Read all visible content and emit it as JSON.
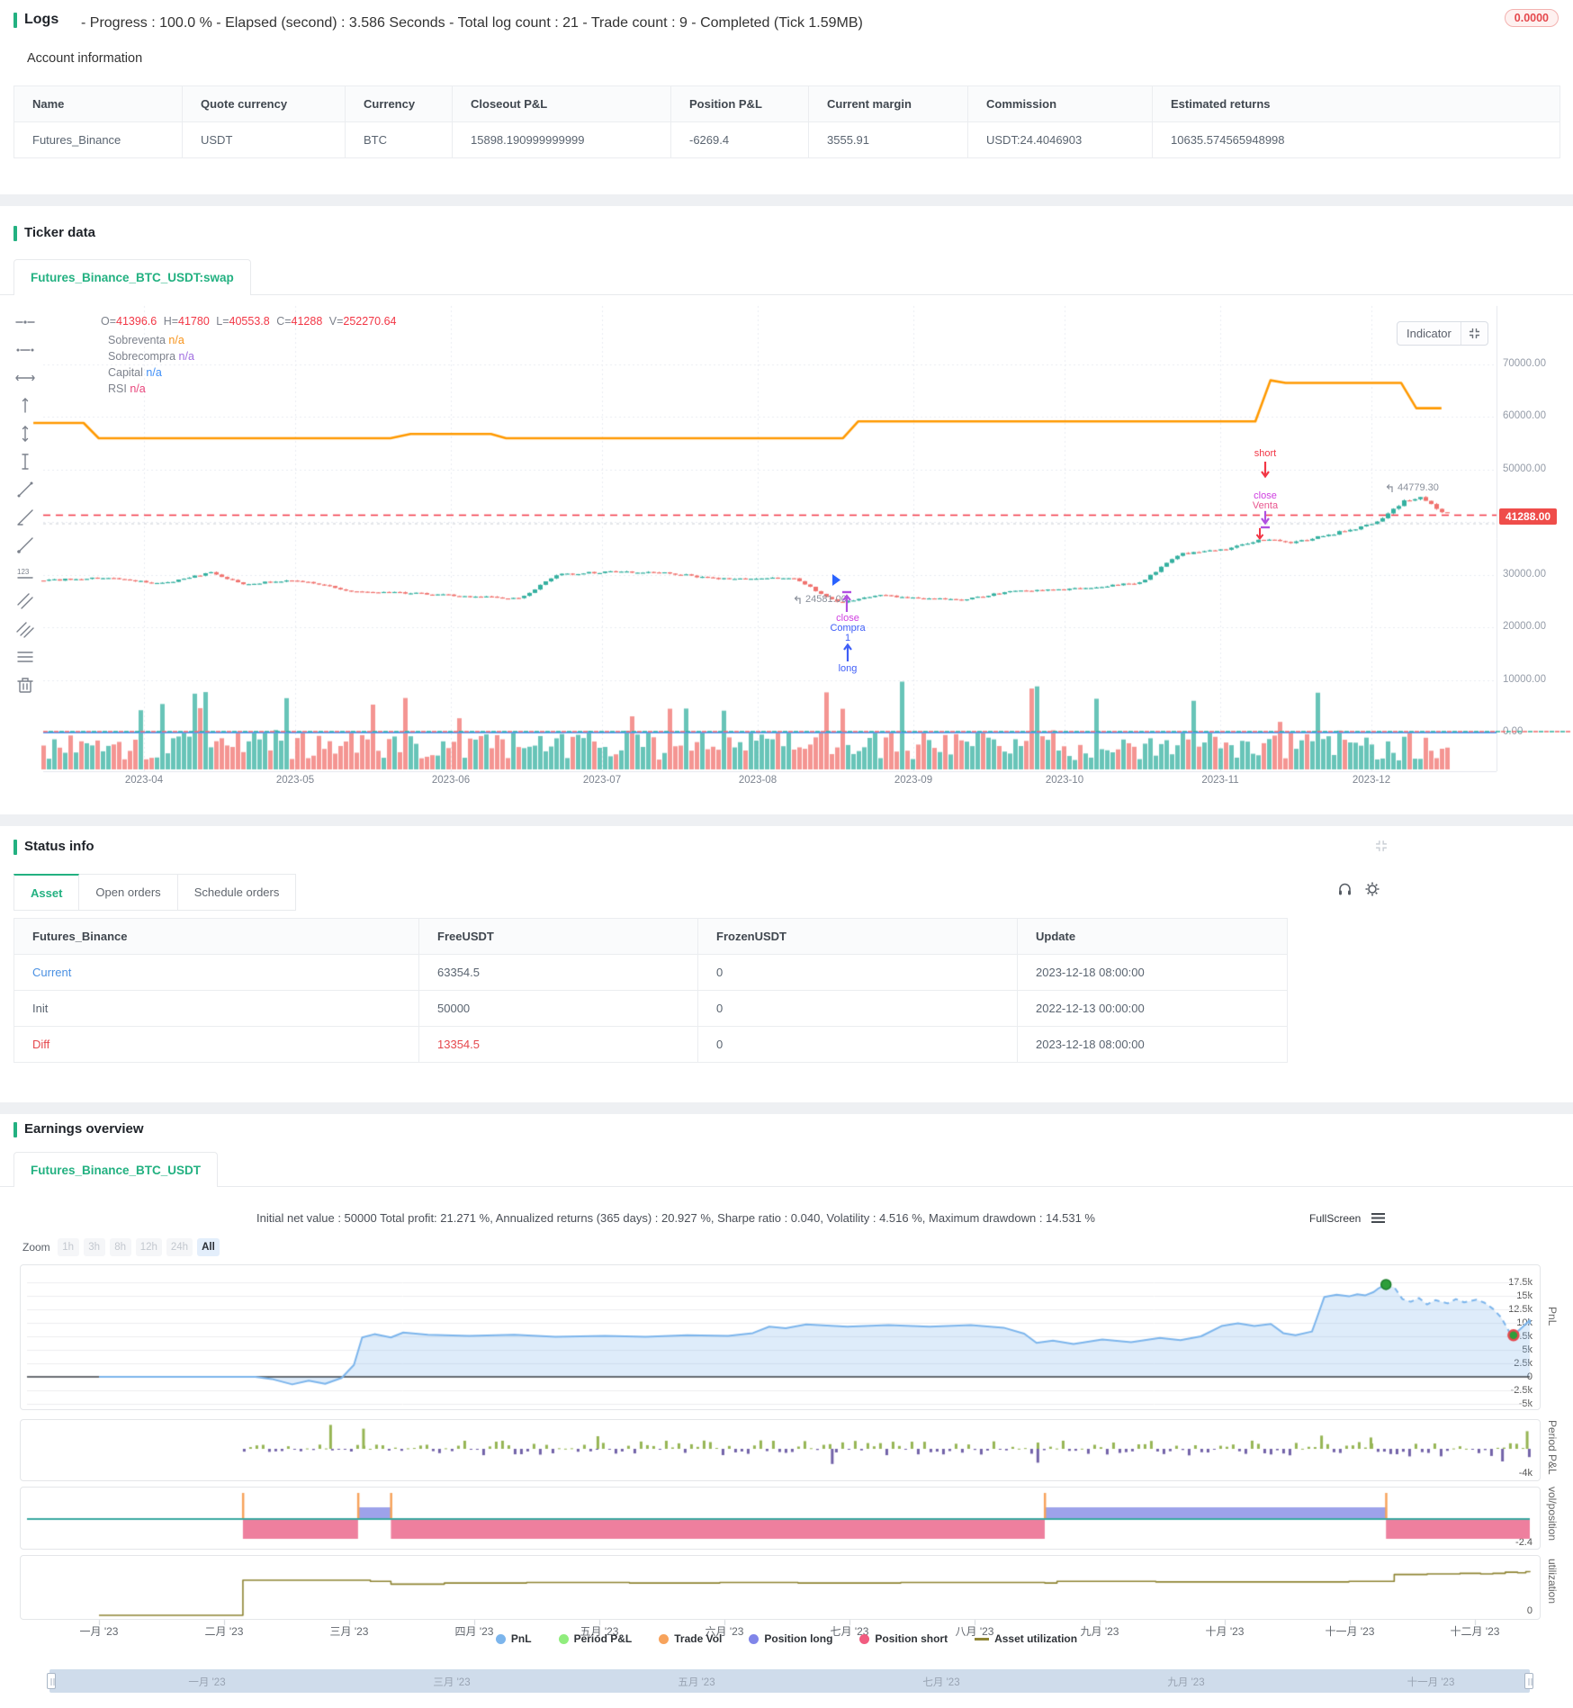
{
  "page": {
    "accent_green": "#23b181",
    "bg": "#ffffff"
  },
  "logs": {
    "title": "Logs",
    "summary": "- Progress : 100.0 % - Elapsed (second) : 3.586  Seconds - Total log count : 21 - Trade count : 9 - Completed (Tick 1.59MB)",
    "badge": "0.0000",
    "badge_color": "#e5484d"
  },
  "account": {
    "title": "Account information",
    "headers": [
      "Name",
      "Quote currency",
      "Currency",
      "Closeout P&L",
      "Position P&L",
      "Current margin",
      "Commission",
      "Estimated returns"
    ],
    "rows": [
      [
        "Futures_Binance",
        "USDT",
        "BTC",
        "15898.190999999999",
        "-6269.4",
        "3555.91",
        "USDT:24.4046903",
        "10635.574565948998"
      ]
    ]
  },
  "ticker": {
    "title": "Ticker data",
    "tab": "Futures_Binance_BTC_USDT:swap",
    "legend_ohlc": [
      {
        "k": "O=",
        "v": "41396.6"
      },
      {
        "k": "H=",
        "v": "41780"
      },
      {
        "k": "L=",
        "v": "40553.8"
      },
      {
        "k": "C=",
        "v": "41288"
      },
      {
        "k": "V=",
        "v": "252270.64"
      }
    ],
    "indicators": [
      {
        "label": "Sobreventa",
        "value": "n/a",
        "color": "#f7931a"
      },
      {
        "label": "Sobrecompra",
        "value": "n/a",
        "color": "#a06ee0"
      },
      {
        "label": "Capital",
        "value": "n/a",
        "color": "#3e8ef7"
      },
      {
        "label": "RSI",
        "value": "n/a",
        "color": "#e8467c"
      }
    ],
    "indicator_button": "Indicator",
    "price_ticks": [
      "70000.00",
      "60000.00",
      "50000.00",
      "40000.00",
      "30000.00",
      "20000.00",
      "10000.00",
      "0.00"
    ],
    "last_price_badge": "41288.00",
    "months": [
      "2023-04",
      "2023-05",
      "2023-06",
      "2023-07",
      "2023-08",
      "2023-09",
      "2023-10",
      "2023-11",
      "2023-12"
    ],
    "annotations": {
      "low_label": "24581.00",
      "high_label": "44779.30",
      "buy_close": "close",
      "buy_side": "Compra",
      "buy_qty": "1",
      "buy_dir": "long",
      "sell_dir": "short",
      "sell_close": "close",
      "sell_side": "Venta"
    },
    "colors": {
      "up": "#35b0a0",
      "down": "#f0726e",
      "capital": "#ff9900",
      "close_line": "#f23645",
      "zero_blue": "#5b9cf8",
      "zero_green": "#2fae9e",
      "zero_red": "#ef6a6a"
    },
    "chart_data": {
      "type": "candlestick",
      "symbol": "Futures_Binance_BTC_USDT:swap",
      "close_price": 41288,
      "y_range": [
        0,
        75000
      ],
      "price_path": [
        [
          "2023-03-10",
          28800
        ],
        [
          "2023-03-25",
          29400
        ],
        [
          "2023-04-05",
          28300
        ],
        [
          "2023-04-14",
          30400
        ],
        [
          "2023-04-21",
          28200
        ],
        [
          "2023-05-01",
          29000
        ],
        [
          "2023-05-12",
          26900
        ],
        [
          "2023-05-25",
          26400
        ],
        [
          "2023-06-05",
          25800
        ],
        [
          "2023-06-15",
          25500
        ],
        [
          "2023-06-22",
          30000
        ],
        [
          "2023-07-01",
          30500
        ],
        [
          "2023-07-14",
          30300
        ],
        [
          "2023-07-24",
          29200
        ],
        [
          "2023-08-08",
          29400
        ],
        [
          "2023-08-17",
          24581
        ],
        [
          "2023-08-25",
          26000
        ],
        [
          "2023-09-11",
          25200
        ],
        [
          "2023-09-20",
          26800
        ],
        [
          "2023-10-01",
          27100
        ],
        [
          "2023-10-16",
          28500
        ],
        [
          "2023-10-24",
          33900
        ],
        [
          "2023-11-02",
          34800
        ],
        [
          "2023-11-09",
          36700
        ],
        [
          "2023-11-16",
          36100
        ],
        [
          "2023-11-24",
          37900
        ],
        [
          "2023-12-01",
          39500
        ],
        [
          "2023-12-05",
          42000
        ],
        [
          "2023-12-08",
          44200
        ],
        [
          "2023-12-11",
          44779.3
        ],
        [
          "2023-12-14",
          42500
        ],
        [
          "2023-12-17",
          41288
        ]
      ],
      "capital_line": [
        [
          "2023-03-10",
          58800
        ],
        [
          "2023-03-20",
          58800
        ],
        [
          "2023-03-23",
          55900
        ],
        [
          "2023-05-20",
          55900
        ],
        [
          "2023-05-24",
          56700
        ],
        [
          "2023-06-09",
          56700
        ],
        [
          "2023-06-12",
          55900
        ],
        [
          "2023-08-18",
          55900
        ],
        [
          "2023-08-21",
          59100
        ],
        [
          "2023-11-08",
          59100
        ],
        [
          "2023-11-11",
          66900
        ],
        [
          "2023-11-14",
          66400
        ],
        [
          "2023-12-07",
          66400
        ],
        [
          "2023-12-10",
          61600
        ],
        [
          "2023-12-15",
          61600
        ]
      ],
      "trade_markers": [
        {
          "date": "2023-08-19",
          "labels": [
            "close",
            "Compra",
            "1",
            "long"
          ],
          "type": "close-short-open-long"
        },
        {
          "date": "2023-11-10",
          "labels": [
            "short",
            "close",
            "Venta"
          ],
          "type": "close-long-open-short"
        }
      ]
    }
  },
  "status": {
    "title": "Status info",
    "tabs": [
      "Asset",
      "Open orders",
      "Schedule orders"
    ],
    "active_tab": "Asset",
    "headers": [
      "Futures_Binance",
      "FreeUSDT",
      "FrozenUSDT",
      "Update"
    ],
    "rows": [
      {
        "name": "Current",
        "free": "63354.5",
        "frozen": "0",
        "update": "2023-12-18 08:00:00",
        "name_color": "#4a90e2",
        "value_color": "#5a6470",
        "link": true
      },
      {
        "name": "Init",
        "free": "50000",
        "frozen": "0",
        "update": "2022-12-13 00:00:00",
        "name_color": "#5a6470",
        "value_color": "#5a6470",
        "link": false
      },
      {
        "name": "Diff",
        "free": "13354.5",
        "frozen": "0",
        "update": "2023-12-18 08:00:00",
        "name_color": "#e5484d",
        "value_color": "#e5484d",
        "link": false
      }
    ]
  },
  "earnings": {
    "title": "Earnings overview",
    "tab": "Futures_Binance_BTC_USDT",
    "stats": "Initial net value : 50000 Total profit: 21.271 %, Annualized returns (365 days) : 20.927 %, Sharpe ratio : 0.040, Volatility : 4.516 %, Maximum drawdown : 14.531 %",
    "fullscreen": "FullScreen",
    "zoom_label": "Zoom",
    "zoom_options": [
      "1h",
      "3h",
      "8h",
      "12h",
      "24h",
      "All"
    ],
    "zoom_active": "All",
    "months": [
      "一月 '23",
      "二月 '23",
      "三月 '23",
      "四月 '23",
      "五月 '23",
      "六月 '23",
      "七月 '23",
      "八月 '23",
      "九月 '23",
      "十月 '23",
      "十一月 '23",
      "十二月 '23"
    ],
    "navigator_months": [
      "一月 '23",
      "三月 '23",
      "五月 '23",
      "七月 '23",
      "九月 '23",
      "十一月 '23"
    ],
    "legend": [
      {
        "label": "PnL",
        "color": "#7cb5ec",
        "marker": "circle"
      },
      {
        "label": "Period P&L",
        "color": "#90ed7d",
        "marker": "circle"
      },
      {
        "label": "Trade Vol",
        "color": "#f7a35c",
        "marker": "circle"
      },
      {
        "label": "Position long",
        "color": "#8085e9",
        "marker": "circle"
      },
      {
        "label": "Position short",
        "color": "#f15c80",
        "marker": "circle"
      },
      {
        "label": "Asset utilization",
        "color": "#8e8433",
        "marker": "line"
      }
    ],
    "axis_titles": {
      "pnl": "PnL",
      "period": "Period P&L",
      "vol": "vol/position",
      "util": "utilization"
    },
    "pnl_ticks": [
      "17.5k",
      "15k",
      "12.5k",
      "10k",
      "7.5k",
      "5k",
      "2.5k",
      "0",
      "-2.5k",
      "-5k"
    ],
    "period_min_label": "-4k",
    "vol_min_label": "-2.4",
    "util_min_label": "0",
    "chart_data": [
      {
        "name": "PnL",
        "type": "area",
        "unit": "k USDT",
        "ylim": [
          -5,
          17.5
        ],
        "solid": [
          [
            "2023-01-01",
            0
          ],
          [
            "2023-02-08",
            0
          ],
          [
            "2023-02-12",
            -0.4
          ],
          [
            "2023-02-17",
            -1.4
          ],
          [
            "2023-02-21",
            -0.7
          ],
          [
            "2023-02-25",
            -1.3
          ],
          [
            "2023-03-01",
            -0.2
          ],
          [
            "2023-03-04",
            2.2
          ],
          [
            "2023-03-06",
            7.3
          ],
          [
            "2023-03-09",
            7.9
          ],
          [
            "2023-03-13",
            7.3
          ],
          [
            "2023-03-16",
            8.2
          ],
          [
            "2023-03-22",
            7.8
          ],
          [
            "2023-04-01",
            7.6
          ],
          [
            "2023-04-12",
            7.8
          ],
          [
            "2023-04-22",
            7.4
          ],
          [
            "2023-05-04",
            7.6
          ],
          [
            "2023-05-14",
            7.4
          ],
          [
            "2023-05-24",
            7.7
          ],
          [
            "2023-06-03",
            7.6
          ],
          [
            "2023-06-09",
            8.1
          ],
          [
            "2023-06-13",
            9.3
          ],
          [
            "2023-06-17",
            9.0
          ],
          [
            "2023-06-22",
            9.7
          ],
          [
            "2023-07-02",
            9.3
          ],
          [
            "2023-07-12",
            9.6
          ],
          [
            "2023-07-22",
            9.3
          ],
          [
            "2023-08-01",
            9.6
          ],
          [
            "2023-08-09",
            9.1
          ],
          [
            "2023-08-14",
            8.0
          ],
          [
            "2023-08-17",
            6.3
          ],
          [
            "2023-08-21",
            6.7
          ],
          [
            "2023-08-26",
            6.1
          ],
          [
            "2023-09-02",
            6.9
          ],
          [
            "2023-09-09",
            6.4
          ],
          [
            "2023-09-16",
            7.2
          ],
          [
            "2023-09-21",
            6.8
          ],
          [
            "2023-09-26",
            7.5
          ],
          [
            "2023-10-01",
            9.4
          ],
          [
            "2023-10-05",
            9.9
          ],
          [
            "2023-10-09",
            9.4
          ],
          [
            "2023-10-13",
            9.8
          ],
          [
            "2023-10-16",
            8.1
          ],
          [
            "2023-10-19",
            7.7
          ],
          [
            "2023-10-23",
            8.4
          ],
          [
            "2023-10-24",
            10.5
          ],
          [
            "2023-10-26",
            14.8
          ],
          [
            "2023-10-29",
            15.2
          ],
          [
            "2023-11-01",
            14.9
          ],
          [
            "2023-11-03",
            15.3
          ],
          [
            "2023-11-05",
            15.1
          ],
          [
            "2023-11-07",
            15.7
          ],
          [
            "2023-11-08",
            16.3
          ],
          [
            "2023-11-10",
            17.1
          ]
        ],
        "dashed": [
          [
            "2023-11-10",
            17.1
          ],
          [
            "2023-11-12",
            16.6
          ],
          [
            "2023-11-14",
            14.4
          ],
          [
            "2023-11-16",
            13.9
          ],
          [
            "2023-11-18",
            14.6
          ],
          [
            "2023-11-20",
            13.4
          ],
          [
            "2023-11-22",
            14.2
          ],
          [
            "2023-11-25",
            13.6
          ],
          [
            "2023-11-27",
            14.4
          ],
          [
            "2023-11-29",
            13.8
          ],
          [
            "2023-12-02",
            14.3
          ],
          [
            "2023-12-04",
            13.7
          ],
          [
            "2023-12-06",
            12.6
          ],
          [
            "2023-12-08",
            11.0
          ],
          [
            "2023-12-10",
            8.3
          ],
          [
            "2023-12-11",
            7.7
          ]
        ],
        "tail": [
          [
            "2023-12-11",
            7.7
          ],
          [
            "2023-12-13",
            9.1
          ],
          [
            "2023-12-15",
            10.5
          ],
          [
            "2023-12-16",
            9.9
          ],
          [
            "2023-12-17",
            10.2
          ],
          [
            "2023-12-18",
            9.8
          ]
        ],
        "peak_marker": {
          "date": "2023-11-10",
          "value": 17.1,
          "fill": "#2e9e3a",
          "stroke": "#1c7c2c"
        },
        "trough_marker": {
          "date": "2023-12-11",
          "value": 7.7,
          "fill": "#2e9e3a",
          "stroke": "#e5484d"
        }
      },
      {
        "name": "Period P&L",
        "type": "bar",
        "unit": "k USDT",
        "ylim": [
          -4,
          4
        ],
        "up_color": "#96b554",
        "down_color": "#7262a8",
        "start": "2023-02-05",
        "end": "2023-12-18",
        "specials": [
          [
            "2023-02-26",
            3.8
          ],
          [
            "2023-03-06",
            3.2
          ],
          [
            "2023-05-02",
            2.0
          ],
          [
            "2023-06-28",
            -2.4
          ],
          [
            "2023-08-17",
            -2.2
          ],
          [
            "2023-10-25",
            2.1
          ],
          [
            "2023-11-06",
            1.8
          ],
          [
            "2023-12-08",
            -2.0
          ],
          [
            "2023-12-14",
            2.8
          ]
        ]
      },
      {
        "name": "Trade Vol / Position",
        "type": "position-bands",
        "zero_color": "#3aa8a0",
        "long_color": "#9da2ea",
        "short_color": "#ee7f9e",
        "vol_color": "#f7a35c",
        "short_spans": [
          [
            "2023-02-05",
            "2023-03-05"
          ],
          [
            "2023-03-13",
            "2023-08-19"
          ],
          [
            "2023-11-10",
            "2023-12-18"
          ]
        ],
        "long_spans": [
          [
            "2023-03-05",
            "2023-03-13"
          ],
          [
            "2023-08-19",
            "2023-11-10"
          ]
        ],
        "trade_marks": [
          "2023-02-05",
          "2023-03-05",
          "2023-03-13",
          "2023-08-19",
          "2023-11-10"
        ]
      },
      {
        "name": "Asset utilization",
        "type": "step-line",
        "color": "#8e8433",
        "unit": "%",
        "points": [
          [
            "2023-01-01",
            0
          ],
          [
            "2023-02-05",
            0
          ],
          [
            "2023-02-05",
            62
          ],
          [
            "2023-03-05",
            62
          ],
          [
            "2023-03-08",
            60
          ],
          [
            "2023-03-13",
            55
          ],
          [
            "2023-03-26",
            57
          ],
          [
            "2023-04-15",
            58
          ],
          [
            "2023-05-10",
            57
          ],
          [
            "2023-06-01",
            58
          ],
          [
            "2023-06-20",
            57
          ],
          [
            "2023-07-15",
            58
          ],
          [
            "2023-08-19",
            57
          ],
          [
            "2023-08-22",
            60
          ],
          [
            "2023-09-15",
            59
          ],
          [
            "2023-10-10",
            59
          ],
          [
            "2023-11-01",
            60
          ],
          [
            "2023-11-10",
            60
          ],
          [
            "2023-11-12",
            72
          ],
          [
            "2023-11-20",
            73
          ],
          [
            "2023-11-28",
            74
          ],
          [
            "2023-12-03",
            73
          ],
          [
            "2023-12-06",
            74
          ],
          [
            "2023-12-09",
            76
          ],
          [
            "2023-12-12",
            75
          ],
          [
            "2023-12-14",
            77
          ],
          [
            "2023-12-18",
            78
          ]
        ]
      }
    ]
  }
}
